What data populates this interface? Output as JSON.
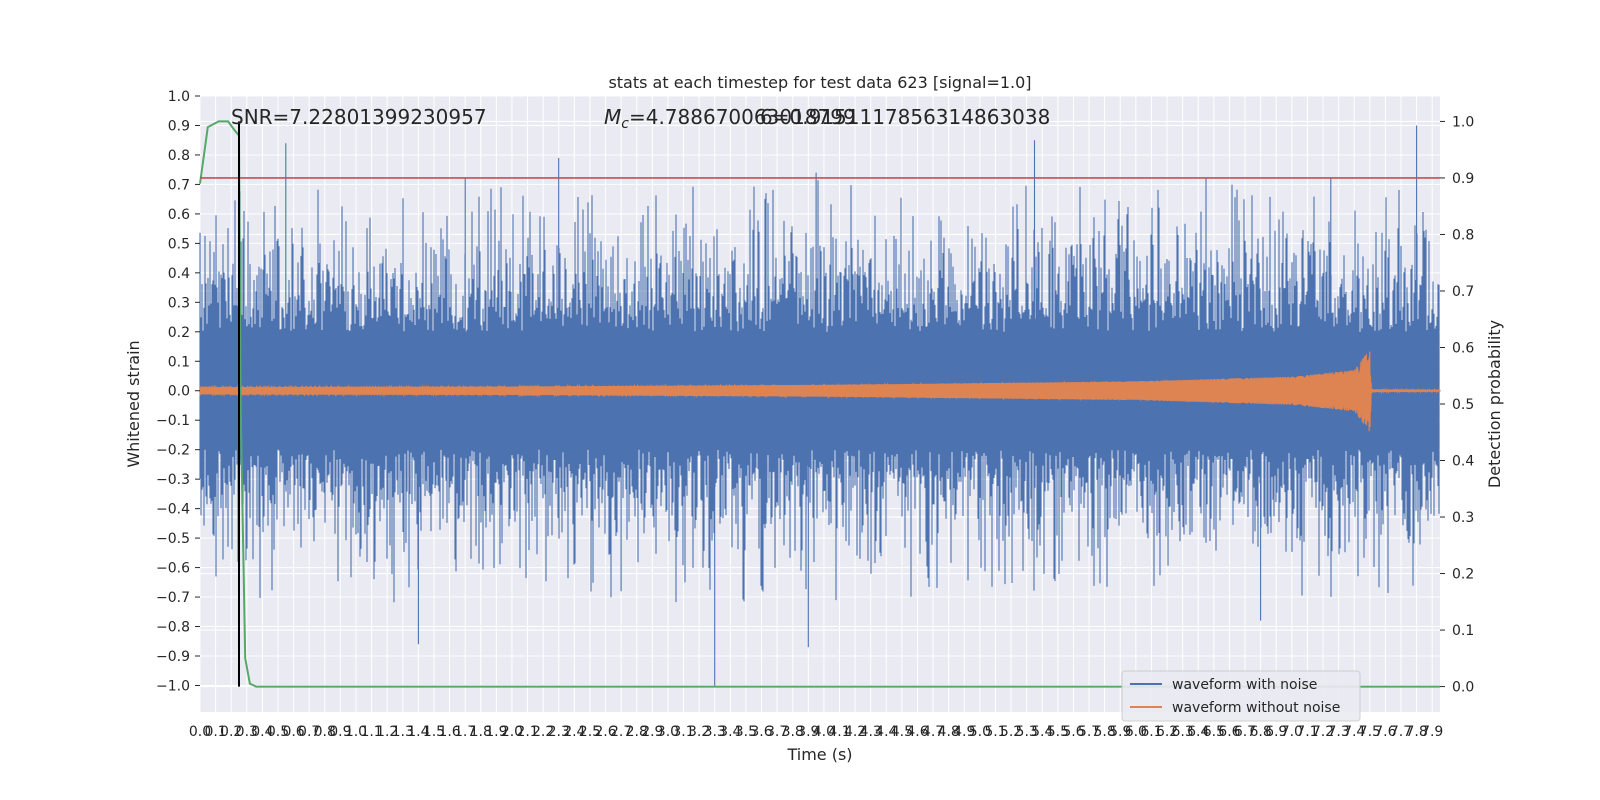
{
  "chart_data": {
    "type": "line",
    "title": "stats at each timestep for test data 623 [signal=1.0]",
    "xlabel": "Time (s)",
    "ylabel": "Whitened strain",
    "ylabel_right": "Detection probability",
    "xlim": [
      0.0,
      7.95
    ],
    "ylim": [
      -1.09,
      1.0
    ],
    "ylim_right": [
      -0.045,
      1.045
    ],
    "x_ticks": [
      "0.0",
      "0.1",
      "0.2",
      "0.3",
      "0.4",
      "0.5",
      "0.6",
      "0.7",
      "0.8",
      "0.9",
      "1.0",
      "1.1",
      "1.2",
      "1.3",
      "1.4",
      "1.5",
      "1.6",
      "1.7",
      "1.8",
      "1.9",
      "2.0",
      "2.1",
      "2.2",
      "2.3",
      "2.4",
      "2.5",
      "2.6",
      "2.7",
      "2.8",
      "2.9",
      "3.0",
      "3.1",
      "3.2",
      "3.3",
      "3.4",
      "3.5",
      "3.6",
      "3.7",
      "3.8",
      "3.9",
      "4.0",
      "4.1",
      "4.2",
      "4.3",
      "4.4",
      "4.5",
      "4.6",
      "4.7",
      "4.8",
      "4.9",
      "5.0",
      "5.1",
      "5.2",
      "5.3",
      "5.4",
      "5.5",
      "5.6",
      "5.7",
      "5.8",
      "5.9",
      "6.0",
      "6.1",
      "6.2",
      "6.3",
      "6.4",
      "6.5",
      "6.6",
      "6.7",
      "6.8",
      "6.9",
      "7.0",
      "7.1",
      "7.2",
      "7.3",
      "7.4",
      "7.5",
      "7.6",
      "7.7",
      "7.8",
      "7.9"
    ],
    "y_ticks": [
      "1.0",
      "0.9",
      "0.8",
      "0.7",
      "0.6",
      "0.5",
      "0.4",
      "0.3",
      "0.2",
      "0.1",
      "0.0",
      "−0.1",
      "−0.2",
      "−0.3",
      "−0.4",
      "−0.5",
      "−0.6",
      "−0.7",
      "−0.8",
      "−0.9",
      "−1.0"
    ],
    "y_ticks_right": [
      "1.0",
      "0.9",
      "0.8",
      "0.7",
      "0.6",
      "0.5",
      "0.4",
      "0.3",
      "0.2",
      "0.1",
      "0.0"
    ],
    "annotations": {
      "snr": "SNR=7.22801399230957",
      "mc_prefix": "M",
      "mc_sub": "c",
      "mc_value": "=4.788670063018799",
      "overlap": "6=0.9151117856314863038"
    },
    "threshold": {
      "value": 0.9,
      "axis": "right",
      "color": "#c44e52"
    },
    "marker_line": {
      "x": 0.25,
      "color": "#000000"
    },
    "series": [
      {
        "name": "waveform with noise",
        "axis": "left",
        "color": "#4c72b0",
        "envelope_hint": {
          "typical_max": 0.45,
          "typical_min": -0.45,
          "peak_max": 0.9,
          "peak_min": -1.0
        }
      },
      {
        "name": "waveform without noise",
        "axis": "left",
        "color": "#dd8452",
        "amplitude_points": {
          "x": [
            0.0,
            2.0,
            4.0,
            6.0,
            7.0,
            7.4,
            7.5,
            7.51,
            7.95
          ],
          "amp": [
            0.012,
            0.014,
            0.02,
            0.032,
            0.048,
            0.07,
            0.14,
            0.005,
            0.003
          ]
        }
      },
      {
        "name": "detection probability",
        "axis": "right",
        "color": "#55a868",
        "x": [
          0.0,
          0.05,
          0.12,
          0.18,
          0.22,
          0.25,
          0.26,
          0.29,
          0.32,
          0.36,
          7.95
        ],
        "y": [
          0.89,
          0.99,
          1.0,
          1.0,
          0.985,
          0.975,
          0.5,
          0.05,
          0.005,
          0.0,
          0.0
        ]
      }
    ],
    "legend": {
      "placement": "lower-right",
      "entries": [
        "waveform with noise",
        "waveform without noise"
      ]
    },
    "grid": true,
    "style": {
      "plot_background": "#eaeaf2",
      "grid_color": "#ffffff"
    }
  }
}
